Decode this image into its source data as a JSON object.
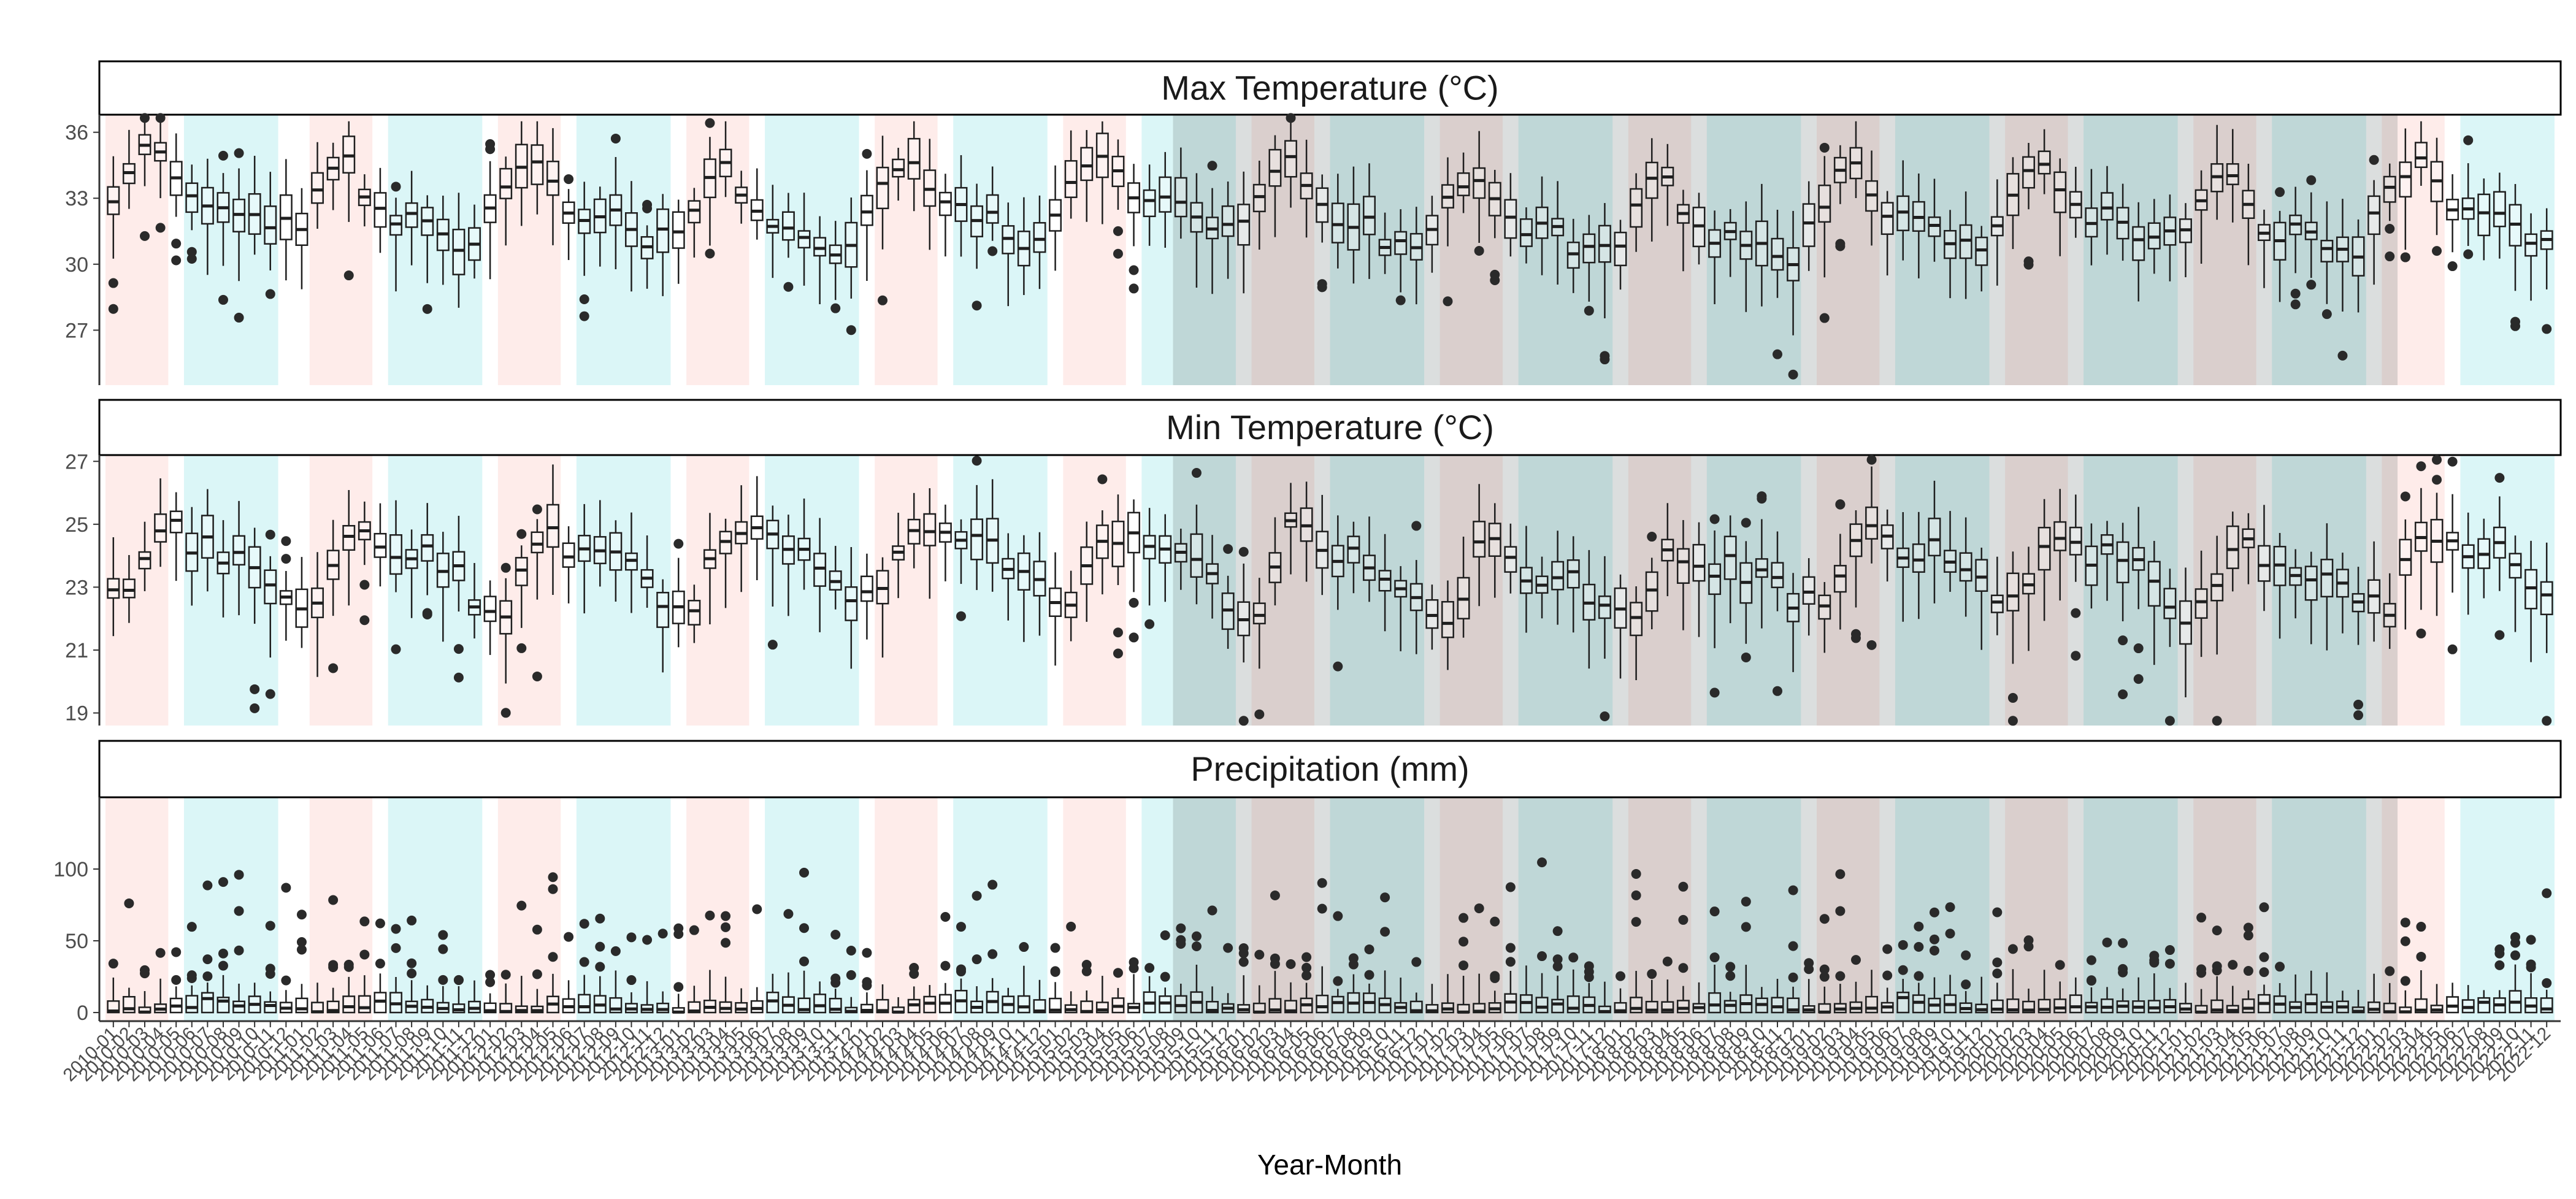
{
  "chart_data": {
    "type": "boxplot",
    "x_axis": {
      "label": "Year-Month",
      "start_year": 2010,
      "end_year": 2022,
      "months_per_year": 12
    },
    "panels": [
      {
        "key": "tmax",
        "title": "Max Temperature (°C)",
        "ylim": [
          24.5,
          36.8
        ],
        "yticks": [
          27,
          30,
          33,
          36
        ],
        "typical_by_month": [
          31.8,
          33.0,
          34.2,
          34.5,
          33.2,
          32.3,
          32.0,
          32.1,
          31.8,
          31.2,
          30.8,
          31.0
        ],
        "year_offset": [
          0.9,
          0.0,
          0.4,
          -0.2,
          0.3,
          0.6,
          0.0,
          -0.3,
          -0.7,
          0.0,
          0.1,
          -0.5,
          0.2
        ],
        "iqr": 1.3,
        "whisker": 2.6
      },
      {
        "key": "tmin",
        "title": "Min Temperature (°C)",
        "ylim": [
          18.6,
          27.2
        ],
        "yticks": [
          19,
          21,
          23,
          25,
          27
        ],
        "typical_by_month": [
          22.3,
          22.4,
          23.5,
          24.7,
          24.6,
          24.3,
          24.1,
          24.0,
          23.9,
          23.6,
          23.3,
          22.7
        ],
        "year_offset": [
          0.2,
          0.0,
          0.0,
          0.2,
          0.4,
          0.0,
          0.0,
          -0.5,
          -0.4,
          0.2,
          -0.1,
          -0.3,
          0.1
        ],
        "iqr": 0.9,
        "whisker": 1.9
      },
      {
        "key": "prcp",
        "title": "Precipitation (mm)",
        "ylim": [
          -6,
          150
        ],
        "yticks": [
          0,
          50,
          100
        ],
        "typical_by_month": [
          1.5,
          1.2,
          1.5,
          2.5,
          4.0,
          5.0,
          6.0,
          5.5,
          5.0,
          4.5,
          3.5,
          2.0
        ],
        "year_offset": [
          0,
          0,
          0,
          0,
          0,
          0,
          0,
          0,
          0,
          0,
          0,
          0,
          0
        ],
        "iqr": 6,
        "whisker": 18
      }
    ],
    "shading": {
      "warm_color": "#f8766d",
      "cool_color": "#00bfc4",
      "alpha": 0.14,
      "note_spans": [
        {
          "from": "2010-01",
          "to": "2010-04",
          "kind": "warm"
        },
        {
          "from": "2010-06",
          "to": "2010-11",
          "kind": "cool"
        },
        {
          "from": "2011-02",
          "to": "2011-05",
          "kind": "warm"
        },
        {
          "from": "2011-07",
          "to": "2011-12",
          "kind": "cool"
        },
        {
          "from": "2012-02",
          "to": "2012-05",
          "kind": "warm"
        },
        {
          "from": "2012-07",
          "to": "2012-12",
          "kind": "cool"
        },
        {
          "from": "2013-02",
          "to": "2013-05",
          "kind": "warm"
        },
        {
          "from": "2013-07",
          "to": "2013-12",
          "kind": "cool"
        },
        {
          "from": "2014-02",
          "to": "2014-05",
          "kind": "warm"
        },
        {
          "from": "2014-07",
          "to": "2014-12",
          "kind": "cool"
        },
        {
          "from": "2015-02",
          "to": "2015-05",
          "kind": "warm"
        },
        {
          "from": "2015-07",
          "to": "2015-12",
          "kind": "cool"
        },
        {
          "from": "2016-02",
          "to": "2016-05",
          "kind": "warm"
        },
        {
          "from": "2016-07",
          "to": "2016-12",
          "kind": "cool"
        },
        {
          "from": "2017-02",
          "to": "2017-05",
          "kind": "warm"
        },
        {
          "from": "2017-07",
          "to": "2017-12",
          "kind": "cool"
        },
        {
          "from": "2018-02",
          "to": "2018-05",
          "kind": "warm"
        },
        {
          "from": "2018-07",
          "to": "2018-12",
          "kind": "cool"
        },
        {
          "from": "2019-02",
          "to": "2019-05",
          "kind": "warm"
        },
        {
          "from": "2019-07",
          "to": "2019-12",
          "kind": "cool"
        },
        {
          "from": "2020-02",
          "to": "2020-05",
          "kind": "warm"
        },
        {
          "from": "2020-07",
          "to": "2020-12",
          "kind": "cool"
        },
        {
          "from": "2021-02",
          "to": "2021-05",
          "kind": "warm"
        },
        {
          "from": "2021-07",
          "to": "2021-12",
          "kind": "cool"
        },
        {
          "from": "2022-02",
          "to": "2022-05",
          "kind": "warm"
        },
        {
          "from": "2022-07",
          "to": "2022-12",
          "kind": "cool"
        }
      ],
      "dark_overlay_from": "2015-09",
      "dark_overlay_to": "2022-02",
      "dark_overlay_color": "#5a6a6a",
      "dark_overlay_alpha": 0.22
    },
    "colors": {
      "box_fill": "#ffffff",
      "box_stroke": "#1f1f1f",
      "outlier": "#2a2a2a",
      "strip_fill": "#ffffff",
      "strip_stroke": "#000000"
    }
  }
}
